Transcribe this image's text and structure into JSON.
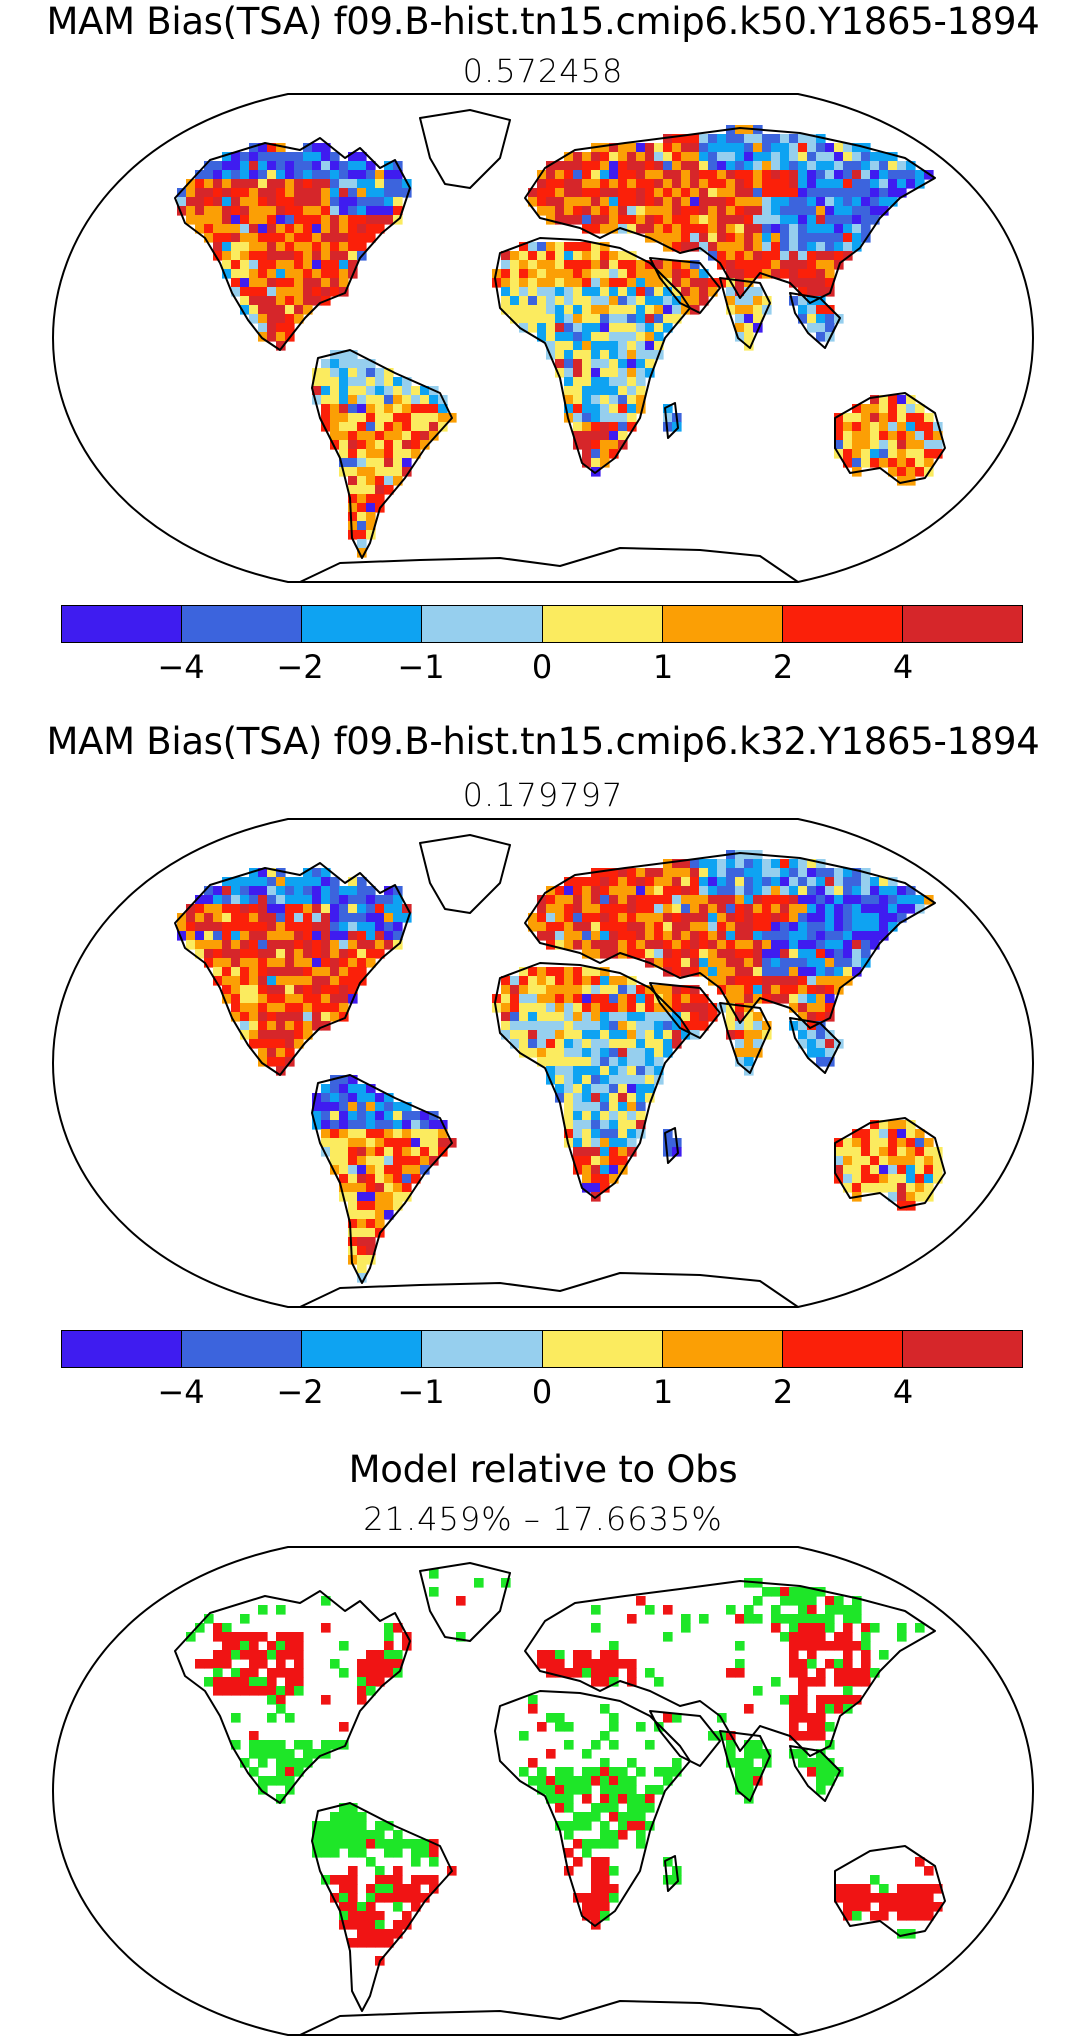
{
  "panels": [
    {
      "title": "MAM Bias(TSA) f09.B-hist.tn15.cmip6.k50.Y1865-1894",
      "subtitle": "0.572458",
      "mode": "bias",
      "seed": 11
    },
    {
      "title": "MAM Bias(TSA) f09.B-hist.tn15.cmip6.k32.Y1865-1894",
      "subtitle": "0.179797",
      "mode": "bias",
      "seed": 29
    },
    {
      "title": "Model relative to Obs",
      "subtitle": "21.459% – 17.6635%",
      "mode": "relative",
      "seed": 47
    }
  ],
  "colorbar": {
    "colors": [
      "#3f1cf0",
      "#3c64dd",
      "#0ea3f2",
      "#96cfee",
      "#fbeb5f",
      "#fb9f05",
      "#fb2009",
      "#d6262a"
    ],
    "tick_labels": [
      "−4",
      "−2",
      "−1",
      "0",
      "1",
      "2",
      "4"
    ]
  },
  "relative_colors": [
    "#1ee628",
    "#f01414"
  ],
  "colorbar_legends": [
    {
      "panel": 0
    },
    {
      "panel": 1
    }
  ]
}
